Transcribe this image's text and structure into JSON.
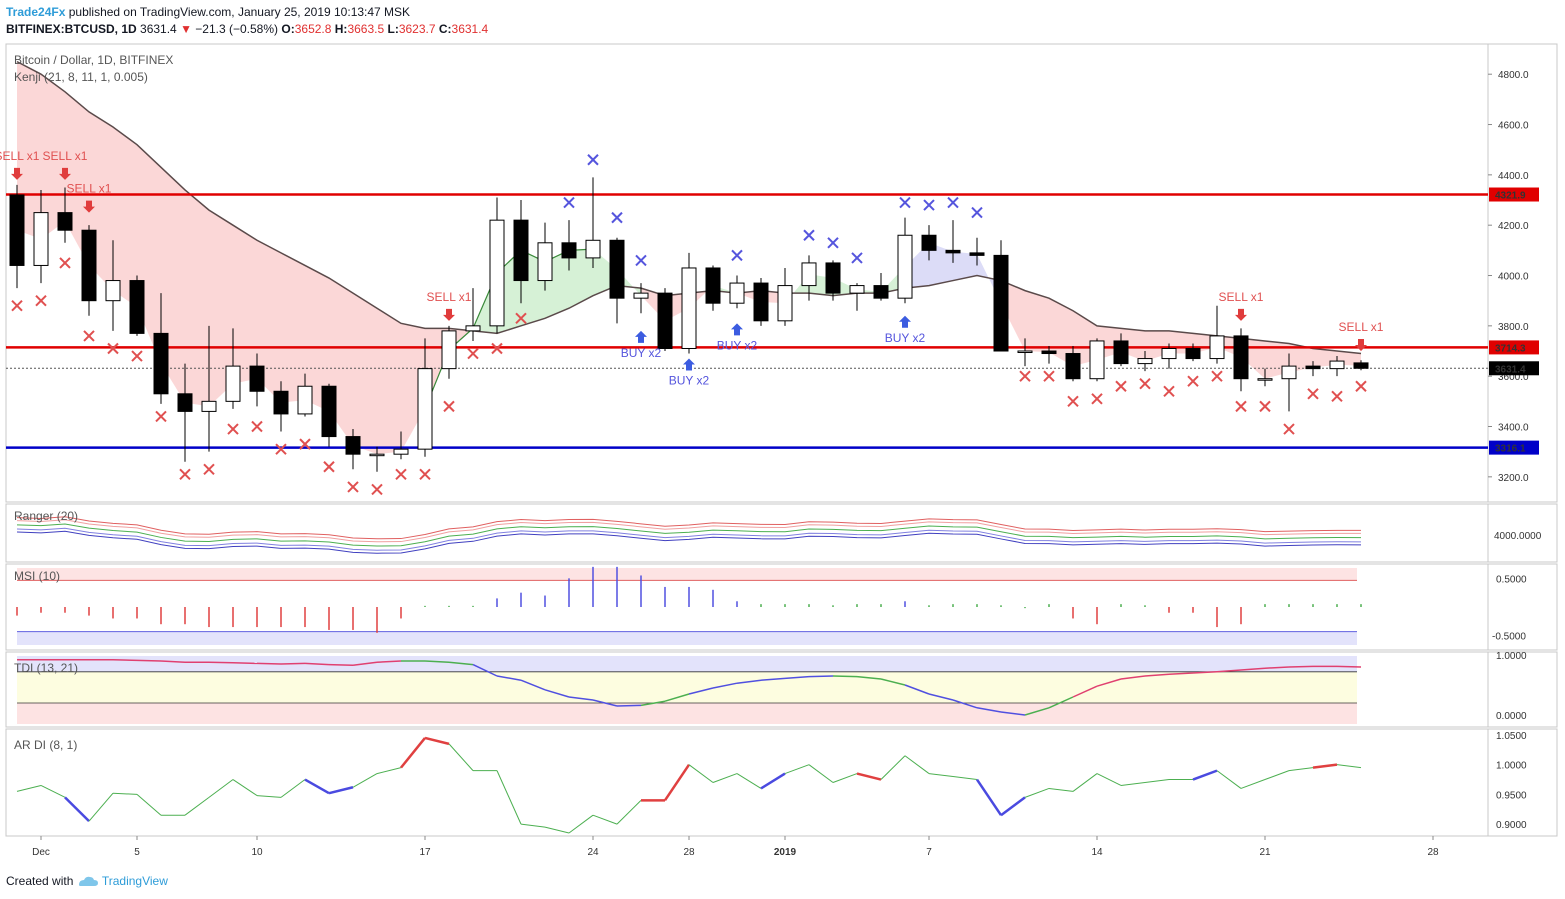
{
  "header": {
    "publisher": "Trade24Fx",
    "published_text": "published on TradingView.com, January 25, 2019 10:13:47 MSK",
    "symbol": "BITFINEX:BTCUSD, 1D",
    "last": "3631.4",
    "arrow": "▼",
    "change": "−21.3 (−0.58%)",
    "o_label": "O:",
    "o_value": "3652.8",
    "h_label": "H:",
    "h_value": "3663.5",
    "l_label": "L:",
    "l_value": "3623.7",
    "c_label": "C:",
    "c_value": "3631.4"
  },
  "footer": {
    "created_text": "Created with",
    "brand": "TradingView",
    "icon": "tradingview-cloud-icon"
  },
  "colors": {
    "bull": "#ffffff",
    "bear": "#000000",
    "resistance": "#e00000",
    "support": "#0000c8",
    "sell": "#e05050",
    "buy": "#5555dd",
    "cloud_bear": "#f9c9c9",
    "cloud_bull": "#c8ecc8",
    "kenji_line": "#5a4a4a",
    "ar_up": "#e04040",
    "ar_down": "#4a4ae0",
    "ar_neutral": "#4caf50"
  },
  "chart_data": [
    {
      "type": "candlestick",
      "title": "Bitcoin / Dollar, 1D, BITFINEX",
      "indicator": "Kenji (21, 8, 11, 1, 0.005)",
      "x_ticks": [
        "Dec",
        "5",
        "10",
        "17",
        "24",
        "28",
        "2019",
        "7",
        "14",
        "21",
        "28"
      ],
      "x_tick_index": [
        1,
        5,
        10,
        17,
        24,
        28,
        32,
        38,
        45,
        52,
        59
      ],
      "y_ticks": [
        3200,
        3400,
        3600,
        3800,
        4000,
        4200,
        4400,
        4600,
        4800
      ],
      "y_tick_labels": [
        "3200.0",
        "3400.0",
        "3600.0",
        "3800.0",
        "4000.0",
        "4200.0",
        "4400.0",
        "4600.0",
        "4800.0"
      ],
      "ylim": [
        3100,
        4920
      ],
      "levels": [
        {
          "value": 4321.9,
          "label": "4321.9",
          "color": "#e00000"
        },
        {
          "value": 3714.3,
          "label": "3714.3",
          "color": "#e00000"
        },
        {
          "value": 3316.1,
          "label": "3316.1",
          "color": "#0000c8"
        }
      ],
      "last_price": {
        "value": 3631.4,
        "label": "3631.4"
      },
      "candles": [
        [
          4320,
          4360,
          3950,
          4040
        ],
        [
          4040,
          4340,
          3970,
          4250
        ],
        [
          4250,
          4350,
          4130,
          4180
        ],
        [
          4180,
          4200,
          3840,
          3900
        ],
        [
          3900,
          4140,
          3780,
          3980
        ],
        [
          3980,
          4000,
          3760,
          3770
        ],
        [
          3770,
          3930,
          3490,
          3530
        ],
        [
          3530,
          3650,
          3260,
          3460
        ],
        [
          3460,
          3800,
          3300,
          3500
        ],
        [
          3500,
          3790,
          3470,
          3640
        ],
        [
          3640,
          3690,
          3480,
          3540
        ],
        [
          3540,
          3580,
          3380,
          3450
        ],
        [
          3450,
          3610,
          3440,
          3560
        ],
        [
          3560,
          3570,
          3320,
          3360
        ],
        [
          3360,
          3390,
          3230,
          3290
        ],
        [
          3290,
          3320,
          3220,
          3290
        ],
        [
          3290,
          3380,
          3270,
          3310
        ],
        [
          3310,
          3750,
          3280,
          3630
        ],
        [
          3630,
          3800,
          3590,
          3780
        ],
        [
          3780,
          3950,
          3740,
          3800
        ],
        [
          3800,
          4310,
          3770,
          4220
        ],
        [
          4220,
          4300,
          3890,
          3980
        ],
        [
          3980,
          4210,
          3940,
          4130
        ],
        [
          4130,
          4220,
          4020,
          4070
        ],
        [
          4070,
          4390,
          4030,
          4140
        ],
        [
          4140,
          4150,
          3810,
          3910
        ],
        [
          3910,
          3970,
          3850,
          3930
        ],
        [
          3930,
          3950,
          3700,
          3710
        ],
        [
          3710,
          4090,
          3690,
          4030
        ],
        [
          4030,
          4040,
          3860,
          3890
        ],
        [
          3890,
          4000,
          3870,
          3970
        ],
        [
          3970,
          3990,
          3800,
          3820
        ],
        [
          3820,
          4030,
          3800,
          3960
        ],
        [
          3960,
          4080,
          3900,
          4050
        ],
        [
          4050,
          4060,
          3900,
          3930
        ],
        [
          3930,
          3970,
          3860,
          3960
        ],
        [
          3960,
          4010,
          3900,
          3910
        ],
        [
          3910,
          4230,
          3890,
          4160
        ],
        [
          4160,
          4200,
          4060,
          4100
        ],
        [
          4100,
          4220,
          4050,
          4090
        ],
        [
          4090,
          4150,
          4040,
          4080
        ],
        [
          4080,
          4140,
          3710,
          3700
        ],
        [
          3700,
          3750,
          3640,
          3700
        ],
        [
          3700,
          3720,
          3650,
          3690
        ],
        [
          3690,
          3720,
          3580,
          3590
        ],
        [
          3590,
          3750,
          3580,
          3740
        ],
        [
          3740,
          3770,
          3640,
          3650
        ],
        [
          3650,
          3700,
          3620,
          3670
        ],
        [
          3670,
          3730,
          3630,
          3710
        ],
        [
          3710,
          3730,
          3660,
          3670
        ],
        [
          3670,
          3880,
          3650,
          3760
        ],
        [
          3760,
          3790,
          3540,
          3590
        ],
        [
          3590,
          3630,
          3560,
          3590
        ],
        [
          3590,
          3690,
          3460,
          3640
        ],
        [
          3640,
          3660,
          3600,
          3630
        ],
        [
          3630,
          3680,
          3600,
          3660
        ],
        [
          3652.8,
          3663.5,
          3623.7,
          3631.4
        ]
      ],
      "kenji_line": [
        4850,
        4800,
        4730,
        4650,
        4590,
        4520,
        4430,
        4340,
        4260,
        4200,
        4140,
        4090,
        4040,
        3990,
        3930,
        3870,
        3810,
        3790,
        3790,
        3780,
        3770,
        3800,
        3830,
        3870,
        3920,
        3960,
        3950,
        3920,
        3930,
        3940,
        3930,
        3940,
        3930,
        3930,
        3920,
        3930,
        3930,
        3950,
        3960,
        3980,
        4000,
        3980,
        3940,
        3910,
        3860,
        3800,
        3790,
        3780,
        3780,
        3770,
        3760,
        3750,
        3740,
        3730,
        3710,
        3700,
        3690
      ],
      "signals": [
        {
          "type": "sell",
          "index": 0,
          "label": "SELL x1",
          "price": 4380
        },
        {
          "type": "sell",
          "index": 2,
          "label": "SELL x1",
          "price": 4380
        },
        {
          "type": "sell",
          "index": 3,
          "label": "SELL x1",
          "price": 4250
        },
        {
          "type": "sell",
          "index": 18,
          "label": "SELL x1",
          "price": 3820
        },
        {
          "type": "buy",
          "index": 26,
          "label": "BUY x2",
          "price": 3780
        },
        {
          "type": "buy",
          "index": 28,
          "label": "BUY x2",
          "price": 3670
        },
        {
          "type": "buy",
          "index": 30,
          "label": "BUY x2",
          "price": 3810
        },
        {
          "type": "buy",
          "index": 37,
          "label": "BUY x2",
          "price": 3840
        },
        {
          "type": "sell",
          "index": 51,
          "label": "SELL x1",
          "price": 3820
        },
        {
          "type": "sell",
          "index": 56,
          "label": "SELL x1",
          "price": 3700
        }
      ],
      "x_marks": [
        {
          "i": 0,
          "p": 3880,
          "t": "s"
        },
        {
          "i": 1,
          "p": 3900,
          "t": "s"
        },
        {
          "i": 2,
          "p": 4050,
          "t": "s"
        },
        {
          "i": 3,
          "p": 3760,
          "t": "s"
        },
        {
          "i": 4,
          "p": 3710,
          "t": "s"
        },
        {
          "i": 5,
          "p": 3680,
          "t": "s"
        },
        {
          "i": 6,
          "p": 3440,
          "t": "s"
        },
        {
          "i": 7,
          "p": 3210,
          "t": "s"
        },
        {
          "i": 8,
          "p": 3230,
          "t": "s"
        },
        {
          "i": 9,
          "p": 3390,
          "t": "s"
        },
        {
          "i": 10,
          "p": 3400,
          "t": "s"
        },
        {
          "i": 11,
          "p": 3310,
          "t": "s"
        },
        {
          "i": 12,
          "p": 3330,
          "t": "s"
        },
        {
          "i": 13,
          "p": 3240,
          "t": "s"
        },
        {
          "i": 14,
          "p": 3160,
          "t": "s"
        },
        {
          "i": 15,
          "p": 3150,
          "t": "s"
        },
        {
          "i": 16,
          "p": 3210,
          "t": "s"
        },
        {
          "i": 17,
          "p": 3210,
          "t": "s"
        },
        {
          "i": 18,
          "p": 3480,
          "t": "s"
        },
        {
          "i": 19,
          "p": 3690,
          "t": "s"
        },
        {
          "i": 20,
          "p": 3710,
          "t": "s"
        },
        {
          "i": 21,
          "p": 3830,
          "t": "s"
        },
        {
          "i": 23,
          "p": 4290,
          "t": "b"
        },
        {
          "i": 24,
          "p": 4460,
          "t": "b"
        },
        {
          "i": 25,
          "p": 4230,
          "t": "b"
        },
        {
          "i": 26,
          "p": 4060,
          "t": "b"
        },
        {
          "i": 30,
          "p": 4080,
          "t": "b"
        },
        {
          "i": 33,
          "p": 4160,
          "t": "b"
        },
        {
          "i": 34,
          "p": 4130,
          "t": "b"
        },
        {
          "i": 35,
          "p": 4070,
          "t": "b"
        },
        {
          "i": 37,
          "p": 4290,
          "t": "b"
        },
        {
          "i": 38,
          "p": 4280,
          "t": "b"
        },
        {
          "i": 39,
          "p": 4290,
          "t": "b"
        },
        {
          "i": 40,
          "p": 4250,
          "t": "b"
        },
        {
          "i": 42,
          "p": 3600,
          "t": "s"
        },
        {
          "i": 43,
          "p": 3600,
          "t": "s"
        },
        {
          "i": 44,
          "p": 3500,
          "t": "s"
        },
        {
          "i": 45,
          "p": 3510,
          "t": "s"
        },
        {
          "i": 46,
          "p": 3560,
          "t": "s"
        },
        {
          "i": 47,
          "p": 3570,
          "t": "s"
        },
        {
          "i": 48,
          "p": 3540,
          "t": "s"
        },
        {
          "i": 49,
          "p": 3580,
          "t": "s"
        },
        {
          "i": 50,
          "p": 3600,
          "t": "s"
        },
        {
          "i": 51,
          "p": 3480,
          "t": "s"
        },
        {
          "i": 52,
          "p": 3480,
          "t": "s"
        },
        {
          "i": 53,
          "p": 3390,
          "t": "s"
        },
        {
          "i": 54,
          "p": 3530,
          "t": "s"
        },
        {
          "i": 55,
          "p": 3520,
          "t": "s"
        },
        {
          "i": 56,
          "p": 3560,
          "t": "s"
        }
      ]
    },
    {
      "type": "line",
      "title": "Ranger (20)",
      "y_tick_labels": [
        "4000.0000"
      ],
      "lines": [
        {
          "color": "#e06060",
          "offset": 60
        },
        {
          "color": "#f0a0a0",
          "offset": 35
        },
        {
          "color": "#4caf50",
          "offset": 0
        },
        {
          "color": "#8080e0",
          "offset": -35
        },
        {
          "color": "#4040c0",
          "offset": -60
        }
      ]
    },
    {
      "type": "bar",
      "title": "MSI (10)",
      "y_tick_labels": [
        "0.5000",
        "-0.5000"
      ],
      "ylim": [
        -0.75,
        0.75
      ],
      "values": [
        -0.15,
        -0.1,
        -0.1,
        -0.15,
        -0.2,
        -0.2,
        -0.3,
        -0.3,
        -0.35,
        -0.35,
        -0.35,
        -0.35,
        -0.35,
        -0.4,
        -0.4,
        -0.45,
        -0.2,
        0.02,
        0.02,
        0.02,
        0.15,
        0.25,
        0.2,
        0.5,
        0.7,
        0.7,
        0.55,
        0.35,
        0.35,
        0.3,
        0.1,
        0.05,
        0.05,
        0.05,
        0.03,
        0.05,
        0.05,
        0.1,
        0.03,
        0.05,
        0.05,
        0.03,
        -0.02,
        0.05,
        -0.2,
        -0.3,
        0.05,
        0.03,
        -0.1,
        -0.1,
        -0.35,
        -0.3,
        0.05,
        0.05,
        0.05,
        0.05,
        0.05
      ]
    },
    {
      "type": "line",
      "title": "TDI (13, 21)",
      "y_tick_labels": [
        "1.0000",
        "0.0000"
      ],
      "ylim": [
        -0.2,
        1.05
      ],
      "values": [
        0.92,
        0.92,
        0.92,
        0.92,
        0.92,
        0.91,
        0.9,
        0.88,
        0.88,
        0.87,
        0.86,
        0.85,
        0.86,
        0.84,
        0.83,
        0.88,
        0.9,
        0.9,
        0.88,
        0.84,
        0.65,
        0.58,
        0.42,
        0.3,
        0.25,
        0.15,
        0.16,
        0.23,
        0.35,
        0.45,
        0.53,
        0.58,
        0.61,
        0.64,
        0.65,
        0.64,
        0.6,
        0.5,
        0.35,
        0.25,
        0.12,
        0.05,
        0.0,
        0.12,
        0.3,
        0.48,
        0.6,
        0.65,
        0.68,
        0.7,
        0.72,
        0.75,
        0.78,
        0.8,
        0.81,
        0.81,
        0.8
      ],
      "colors": [
        "r",
        "r",
        "r",
        "r",
        "r",
        "r",
        "r",
        "r",
        "r",
        "r",
        "r",
        "r",
        "r",
        "r",
        "r",
        "r",
        "g",
        "g",
        "g",
        "b",
        "b",
        "b",
        "b",
        "b",
        "b",
        "b",
        "g",
        "g",
        "b",
        "b",
        "b",
        "b",
        "b",
        "b",
        "g",
        "g",
        "g",
        "b",
        "b",
        "b",
        "b",
        "b",
        "g",
        "g",
        "r",
        "r",
        "r",
        "r",
        "r",
        "r",
        "r",
        "r",
        "r",
        "r",
        "r",
        "r"
      ]
    },
    {
      "type": "line",
      "title": "AR DI (8, 1)",
      "y_ticks": [
        0.9,
        0.95,
        1.0,
        1.05
      ],
      "y_tick_labels": [
        "0.9000",
        "0.9500",
        "1.0000",
        "1.0500"
      ],
      "ylim": [
        0.88,
        1.06
      ],
      "values": [
        0.955,
        0.965,
        0.945,
        0.905,
        0.952,
        0.95,
        0.915,
        0.915,
        0.945,
        0.975,
        0.948,
        0.945,
        0.975,
        0.952,
        0.962,
        0.985,
        0.995,
        1.045,
        1.035,
        0.99,
        0.99,
        0.9,
        0.895,
        0.885,
        0.915,
        0.9,
        0.94,
        0.94,
        1.0,
        0.97,
        0.985,
        0.96,
        0.985,
        1.0,
        0.97,
        0.985,
        0.975,
        1.015,
        0.985,
        0.98,
        0.975,
        0.915,
        0.945,
        0.96,
        0.955,
        0.985,
        0.965,
        0.97,
        0.975,
        0.975,
        0.99,
        0.96,
        0.975,
        0.99,
        0.995,
        1.0,
        0.995
      ],
      "seg_colors": [
        "n",
        "n",
        "d",
        "n",
        "n",
        "n",
        "n",
        "n",
        "n",
        "n",
        "n",
        "n",
        "d",
        "d",
        "n",
        "n",
        "u",
        "u",
        "n",
        "n",
        "n",
        "n",
        "n",
        "n",
        "n",
        "n",
        "u",
        "u",
        "n",
        "n",
        "n",
        "d",
        "n",
        "n",
        "n",
        "u",
        "n",
        "n",
        "n",
        "n",
        "d",
        "d",
        "n",
        "n",
        "n",
        "n",
        "n",
        "n",
        "n",
        "d",
        "n",
        "n",
        "n",
        "n",
        "u",
        "n"
      ]
    }
  ]
}
